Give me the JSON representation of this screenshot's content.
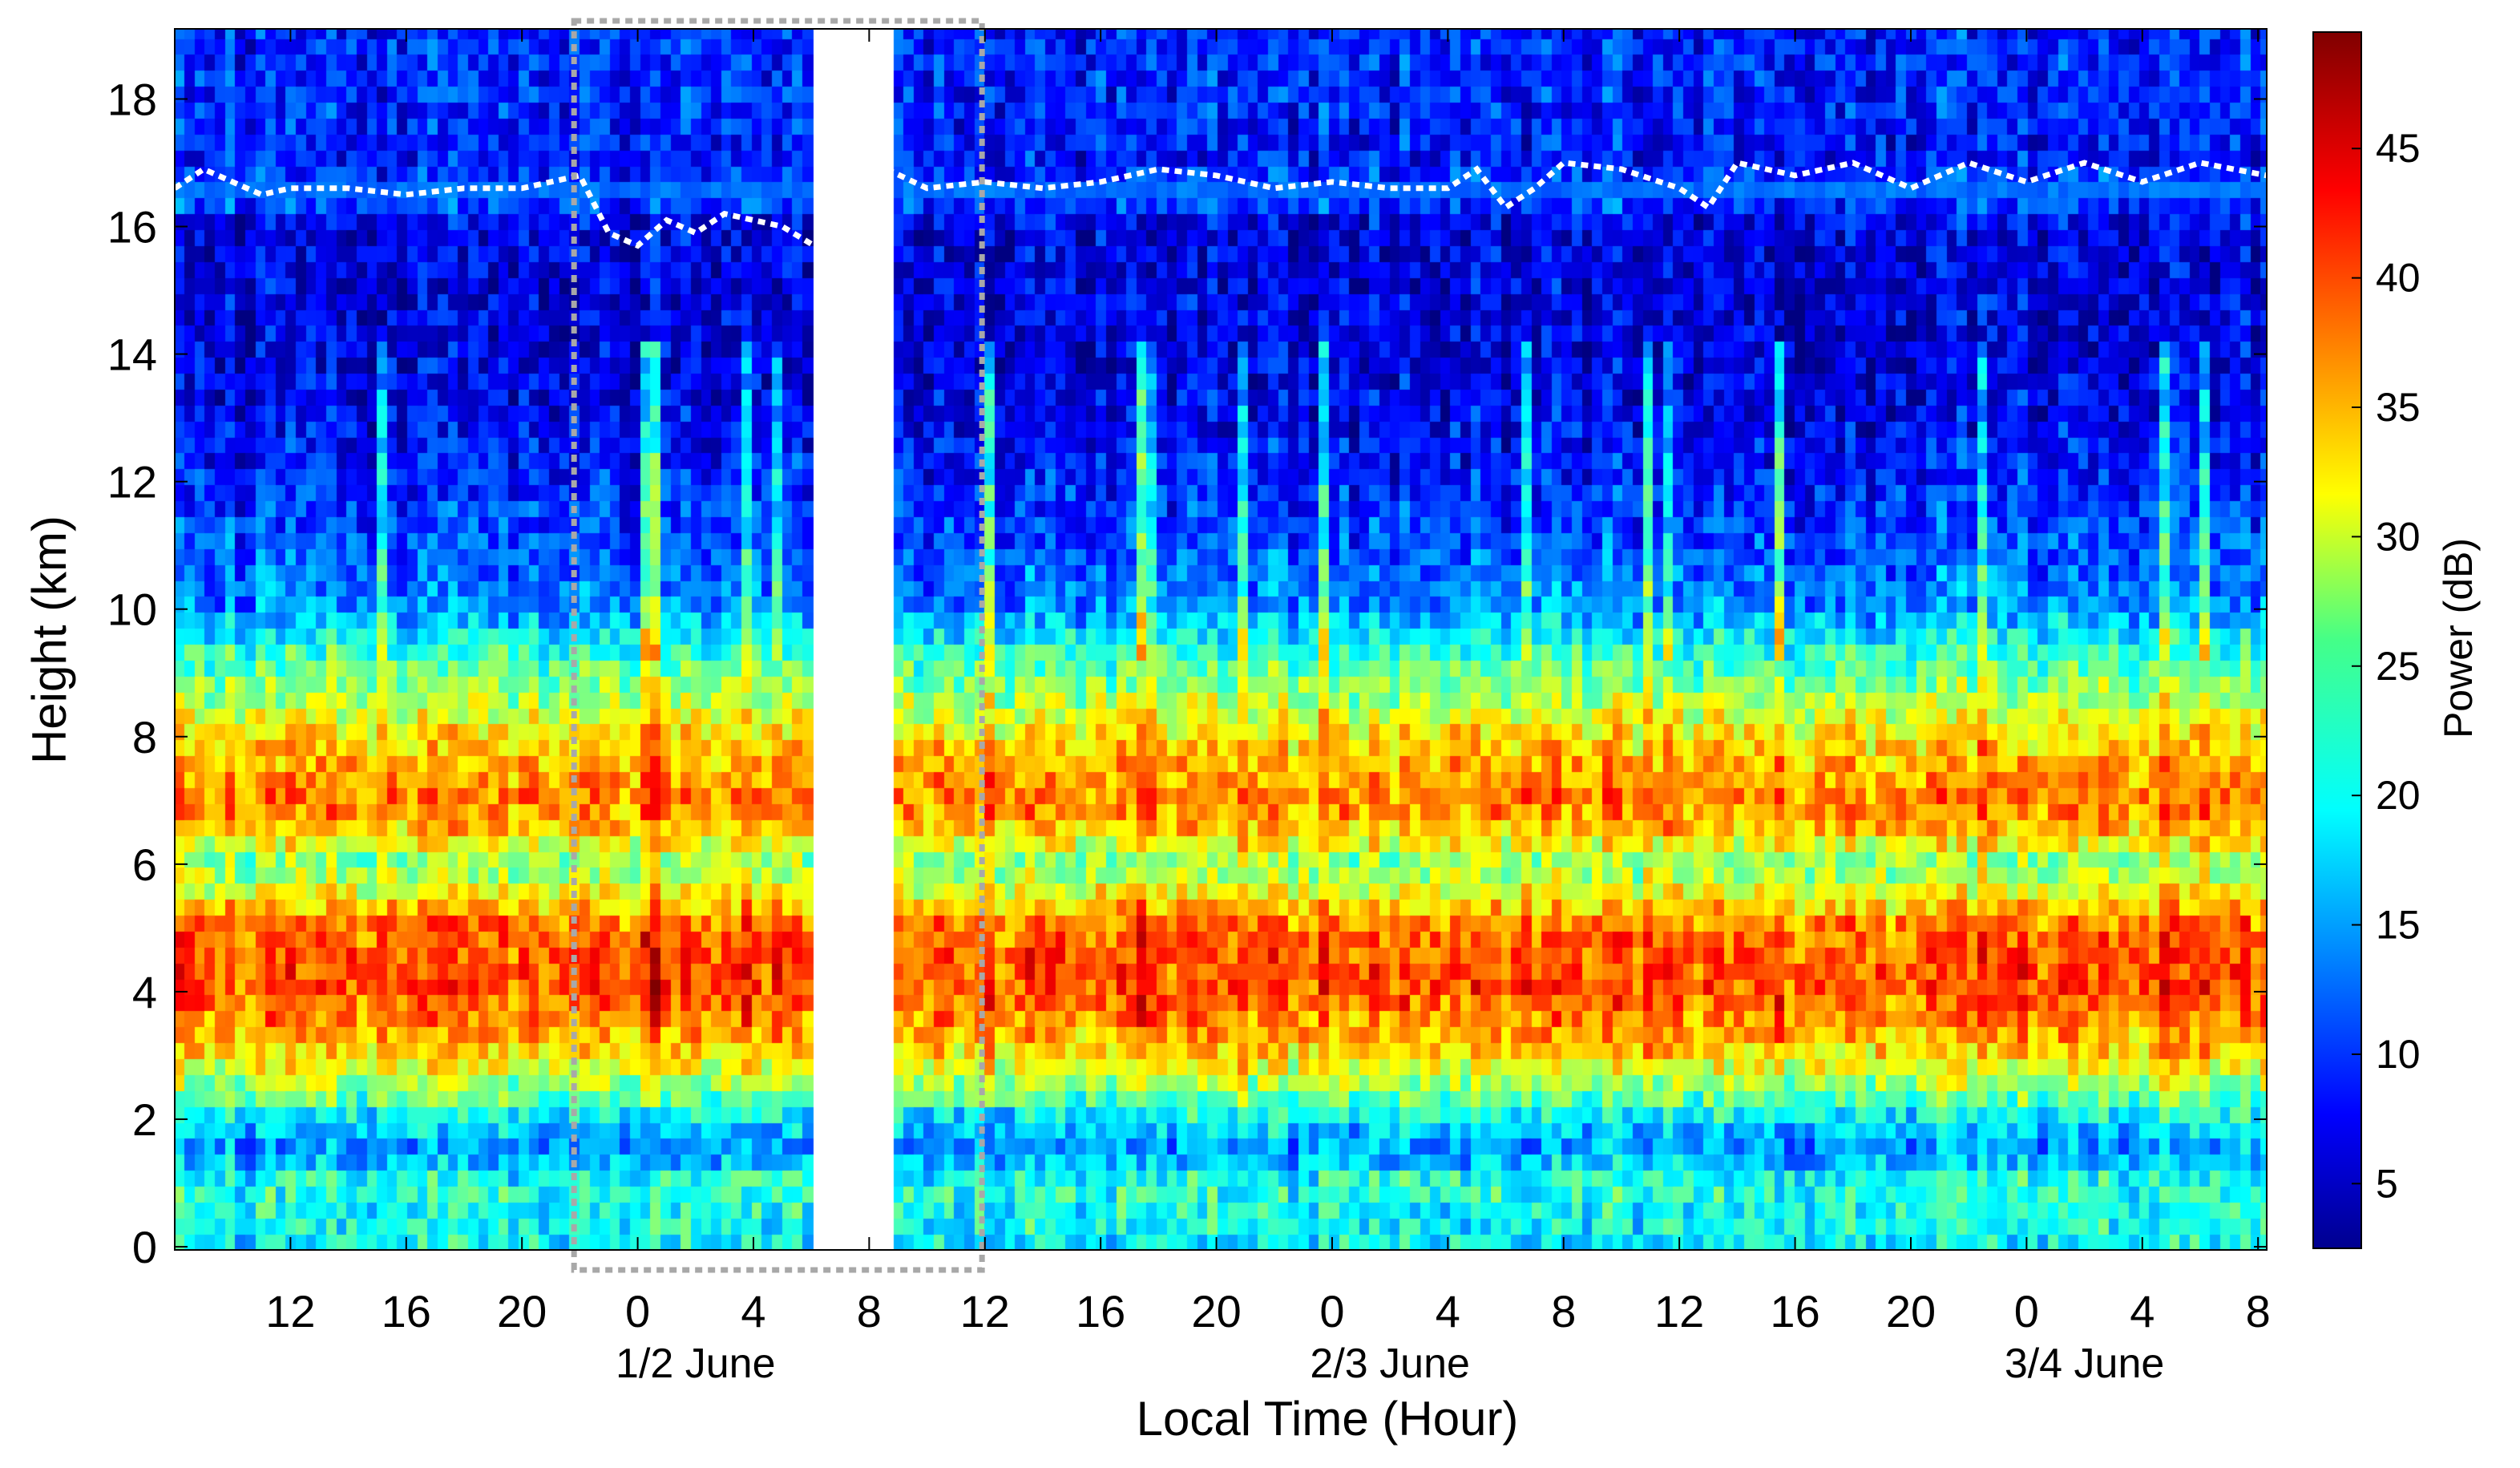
{
  "chart_data": {
    "type": "heatmap",
    "title": "",
    "xlabel": "Local Time (Hour)",
    "ylabel": "Height (km)",
    "colorbar_label": "Power (dB)",
    "colormap": "jet",
    "color_range": [
      2.5,
      49.5
    ],
    "colorbar_ticks": [
      5,
      10,
      15,
      20,
      25,
      30,
      35,
      40,
      45
    ],
    "x_range_hours": [
      8,
      80.3
    ],
    "ylim": [
      -0.05,
      19.1
    ],
    "y_ticks": [
      0,
      2,
      4,
      6,
      8,
      10,
      12,
      14,
      16,
      18
    ],
    "x_ticks": [
      {
        "hour": 12,
        "label": "12"
      },
      {
        "hour": 16,
        "label": "16"
      },
      {
        "hour": 20,
        "label": "20"
      },
      {
        "hour": 24,
        "label": "0"
      },
      {
        "hour": 28,
        "label": "4"
      },
      {
        "hour": 32,
        "label": "8"
      },
      {
        "hour": 36,
        "label": "12"
      },
      {
        "hour": 40,
        "label": "16"
      },
      {
        "hour": 44,
        "label": "20"
      },
      {
        "hour": 48,
        "label": "0"
      },
      {
        "hour": 52,
        "label": "4"
      },
      {
        "hour": 56,
        "label": "8"
      },
      {
        "hour": 60,
        "label": "12"
      },
      {
        "hour": 64,
        "label": "16"
      },
      {
        "hour": 68,
        "label": "20"
      },
      {
        "hour": 72,
        "label": "0"
      },
      {
        "hour": 76,
        "label": "4"
      },
      {
        "hour": 80,
        "label": "8"
      }
    ],
    "date_labels": [
      {
        "hour": 26,
        "text": "1/2 June"
      },
      {
        "hour": 50,
        "text": "2/3 June"
      },
      {
        "hour": 74,
        "text": "3/4 June"
      }
    ],
    "data_gap_hours": [
      30.1,
      32.6
    ],
    "highlight_box_hours": [
      21.8,
      35.9
    ],
    "power_profile_db": {
      "height_km": [
        0,
        0.5,
        1,
        1.5,
        2,
        2.5,
        3,
        3.5,
        4,
        4.5,
        5,
        5.5,
        6,
        6.5,
        7,
        7.5,
        8,
        8.5,
        9,
        9.5,
        10,
        11,
        12,
        13,
        14,
        15,
        16,
        16.5,
        17,
        18,
        19
      ],
      "typical_power": [
        20,
        21,
        22,
        15,
        19,
        27,
        33,
        37,
        40,
        40,
        39,
        32,
        26,
        34,
        38,
        36,
        33,
        29,
        25,
        21,
        15,
        12,
        10,
        8,
        7,
        7,
        7,
        13,
        9,
        10,
        10
      ]
    },
    "tropopause_track": {
      "hour": [
        8,
        9,
        10,
        11,
        12,
        14,
        16,
        18,
        20,
        22,
        23,
        24,
        25,
        26,
        27,
        28,
        29,
        30.1,
        32.6,
        34,
        36,
        38,
        40,
        42,
        44,
        46,
        48,
        50,
        52,
        53,
        54,
        55,
        56,
        58,
        60,
        61,
        62,
        64,
        66,
        68,
        70,
        72,
        74,
        76,
        78,
        80.3
      ],
      "height_km": [
        16.6,
        16.9,
        16.7,
        16.5,
        16.6,
        16.6,
        16.5,
        16.6,
        16.6,
        16.8,
        15.9,
        15.7,
        16.1,
        15.9,
        16.2,
        16.1,
        16.0,
        15.7,
        16.9,
        16.6,
        16.7,
        16.6,
        16.7,
        16.9,
        16.8,
        16.6,
        16.7,
        16.6,
        16.6,
        16.9,
        16.3,
        16.6,
        17.0,
        16.9,
        16.6,
        16.3,
        17.0,
        16.8,
        17.0,
        16.6,
        17.0,
        16.7,
        17.0,
        16.7,
        17.0,
        16.8
      ]
    }
  }
}
